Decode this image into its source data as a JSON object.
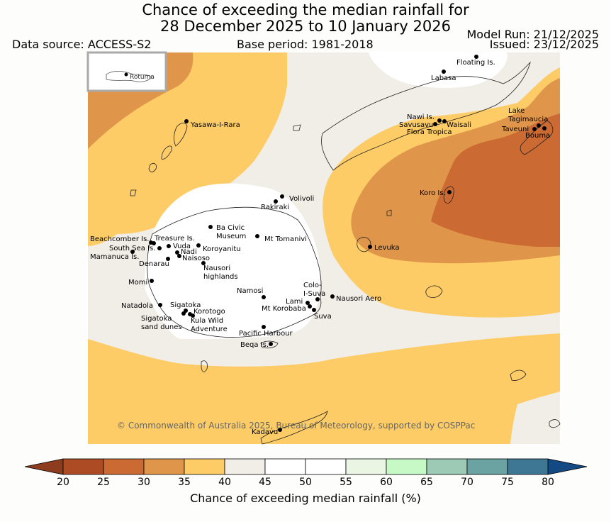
{
  "title": {
    "line1": "Chance of exceeding the median rainfall for",
    "line2": "28 December 2025 to 10 January 2026"
  },
  "header": {
    "data_source": "Data source: ACCESS-S2",
    "base_period": "Base period: 1981-2018",
    "model_run": "Model Run: 21/12/2025",
    "issued": "Issued: 23/12/2025"
  },
  "inset": {
    "label": "Rotuma"
  },
  "places": [
    {
      "id": "floating-is",
      "lines": [
        "Floating Is."
      ]
    },
    {
      "id": "labasa",
      "lines": [
        "Labasa"
      ]
    },
    {
      "id": "yasawa-i-rara",
      "lines": [
        "Yasawa-I-Rara"
      ]
    },
    {
      "id": "nawi-is",
      "lines": [
        "Nawi Is."
      ]
    },
    {
      "id": "savusavu",
      "lines": [
        "Savusavu"
      ]
    },
    {
      "id": "waisali",
      "lines": [
        "Waisali"
      ]
    },
    {
      "id": "flora-tropica",
      "lines": [
        "Flora Tropica"
      ]
    },
    {
      "id": "lake-tagimaucia",
      "lines": [
        "Lake",
        "Tagimaucia"
      ]
    },
    {
      "id": "taveuni",
      "lines": [
        "Taveuni"
      ]
    },
    {
      "id": "bouma",
      "lines": [
        "Bouma"
      ]
    },
    {
      "id": "koro-is",
      "lines": [
        "Koro Is."
      ]
    },
    {
      "id": "volivoli",
      "lines": [
        "Volivoli"
      ]
    },
    {
      "id": "rakiraki",
      "lines": [
        "Rakiraki"
      ]
    },
    {
      "id": "ba-civic-museum",
      "lines": [
        "Ba Civic",
        "Museum"
      ]
    },
    {
      "id": "mt-tomanivi",
      "lines": [
        "Mt Tomanivi"
      ]
    },
    {
      "id": "beachcomber-is",
      "lines": [
        "Beachcomber Is."
      ]
    },
    {
      "id": "treasure-is",
      "lines": [
        "Treasure Is."
      ]
    },
    {
      "id": "south-sea-is",
      "lines": [
        "South Sea Is."
      ]
    },
    {
      "id": "vuda",
      "lines": [
        "Vuda"
      ]
    },
    {
      "id": "koroyanitu",
      "lines": [
        "Koroyanitu"
      ]
    },
    {
      "id": "nadi",
      "lines": [
        "Nadi"
      ]
    },
    {
      "id": "mamanuca-is",
      "lines": [
        "Mamanuca Is."
      ]
    },
    {
      "id": "naisoso",
      "lines": [
        "Naisoso"
      ]
    },
    {
      "id": "denarau",
      "lines": [
        "Denarau"
      ]
    },
    {
      "id": "nausori-highlands",
      "lines": [
        "Nausori",
        "highlands"
      ]
    },
    {
      "id": "levuka",
      "lines": [
        "Levuka"
      ]
    },
    {
      "id": "momi",
      "lines": [
        "Momi"
      ]
    },
    {
      "id": "namosi",
      "lines": [
        "Namosi"
      ]
    },
    {
      "id": "colo-i-suva",
      "lines": [
        "Colo-",
        "I-Suva"
      ]
    },
    {
      "id": "nausori-aero",
      "lines": [
        "Nausori Aero"
      ]
    },
    {
      "id": "natadola",
      "lines": [
        "Natadola"
      ]
    },
    {
      "id": "sigatoka",
      "lines": [
        "Sigatoka"
      ]
    },
    {
      "id": "lami",
      "lines": [
        "Lami"
      ]
    },
    {
      "id": "mt-korobaba",
      "lines": [
        "Mt Korobaba"
      ]
    },
    {
      "id": "korotogo",
      "lines": [
        "Korotogo"
      ]
    },
    {
      "id": "suva",
      "lines": [
        "Suva"
      ]
    },
    {
      "id": "sigatoka-sand-dunes",
      "lines": [
        "Sigatoka",
        "sand dunes"
      ]
    },
    {
      "id": "kula-wild-adventure",
      "lines": [
        "Kula Wild",
        "Adventure"
      ]
    },
    {
      "id": "pacific-harbour",
      "lines": [
        "Pacific Harbour"
      ]
    },
    {
      "id": "beqa-is",
      "lines": [
        "Beqa Is."
      ]
    },
    {
      "id": "kadavu",
      "lines": [
        "Kadavu"
      ]
    }
  ],
  "credit": "© Commonwealth of Australia 2025, Bureau of Meteorology, supported by COSPPac",
  "colorbar": {
    "ticks": [
      "20",
      "25",
      "30",
      "35",
      "40",
      "45",
      "50",
      "55",
      "60",
      "65",
      "70",
      "75",
      "80"
    ],
    "colors": [
      "#ac4b24",
      "#cb6a32",
      "#e0964a",
      "#fdcc66",
      "#f1ede7",
      "#ffffff",
      "#ffffff",
      "#eaf5e4",
      "#c7f9c7",
      "#9dcab5",
      "#6aa3a1",
      "#3d7793"
    ],
    "under_color": "#8d3d1e",
    "over_color": "#134a84",
    "label": "Chance of exceeding median rainfall (%)"
  }
}
